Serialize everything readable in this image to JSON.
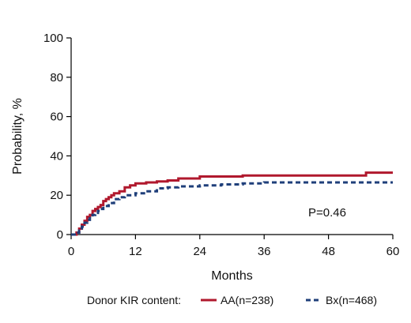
{
  "chart_data": {
    "type": "line",
    "title": "",
    "xlabel": "Months",
    "ylabel": "Probability, %",
    "xlim": [
      0,
      60
    ],
    "ylim": [
      0,
      100
    ],
    "x_ticks": [
      0,
      12,
      24,
      36,
      48,
      60
    ],
    "y_ticks": [
      0,
      20,
      40,
      60,
      80,
      100
    ],
    "grid": false,
    "legend_placement": "bottom",
    "legend_title": "Donor KIR content:",
    "annotation": "P=0.46",
    "series": [
      {
        "name": "AA(n=238)",
        "color": "#b0182d",
        "style": "solid",
        "step": true,
        "x": [
          0,
          1,
          1.5,
          2,
          2.5,
          3,
          3.5,
          4,
          4.5,
          5,
          5.5,
          6,
          6.5,
          7,
          7.5,
          8,
          9,
          10,
          11,
          12,
          14,
          16,
          18,
          20,
          22,
          24,
          28,
          32,
          36,
          40,
          44,
          48,
          52,
          55,
          60
        ],
        "y": [
          0,
          1,
          3,
          5,
          7,
          9,
          10,
          12,
          13,
          14,
          15,
          17,
          18,
          19,
          20,
          21,
          22,
          24,
          25,
          26,
          26.5,
          27,
          27.5,
          28.5,
          28.5,
          29.5,
          29.5,
          30,
          30,
          30,
          30,
          30,
          30,
          31.5,
          31.5
        ]
      },
      {
        "name": "Bx(n=468)",
        "color": "#1f3f7a",
        "style": "dashed",
        "step": true,
        "x": [
          0,
          1,
          1.5,
          2,
          2.5,
          3,
          3.5,
          4,
          4.5,
          5,
          5.5,
          6,
          7,
          8,
          9,
          10,
          12,
          14,
          16,
          18,
          20,
          24,
          28,
          32,
          36,
          40,
          48,
          60
        ],
        "y": [
          0,
          1,
          2,
          4,
          6,
          7.5,
          9,
          10,
          11,
          12,
          13,
          14.5,
          16,
          18,
          19,
          20,
          21,
          22,
          23.5,
          24,
          24.5,
          25,
          25.5,
          26,
          26.5,
          26.5,
          26.5,
          26.5
        ]
      }
    ]
  }
}
